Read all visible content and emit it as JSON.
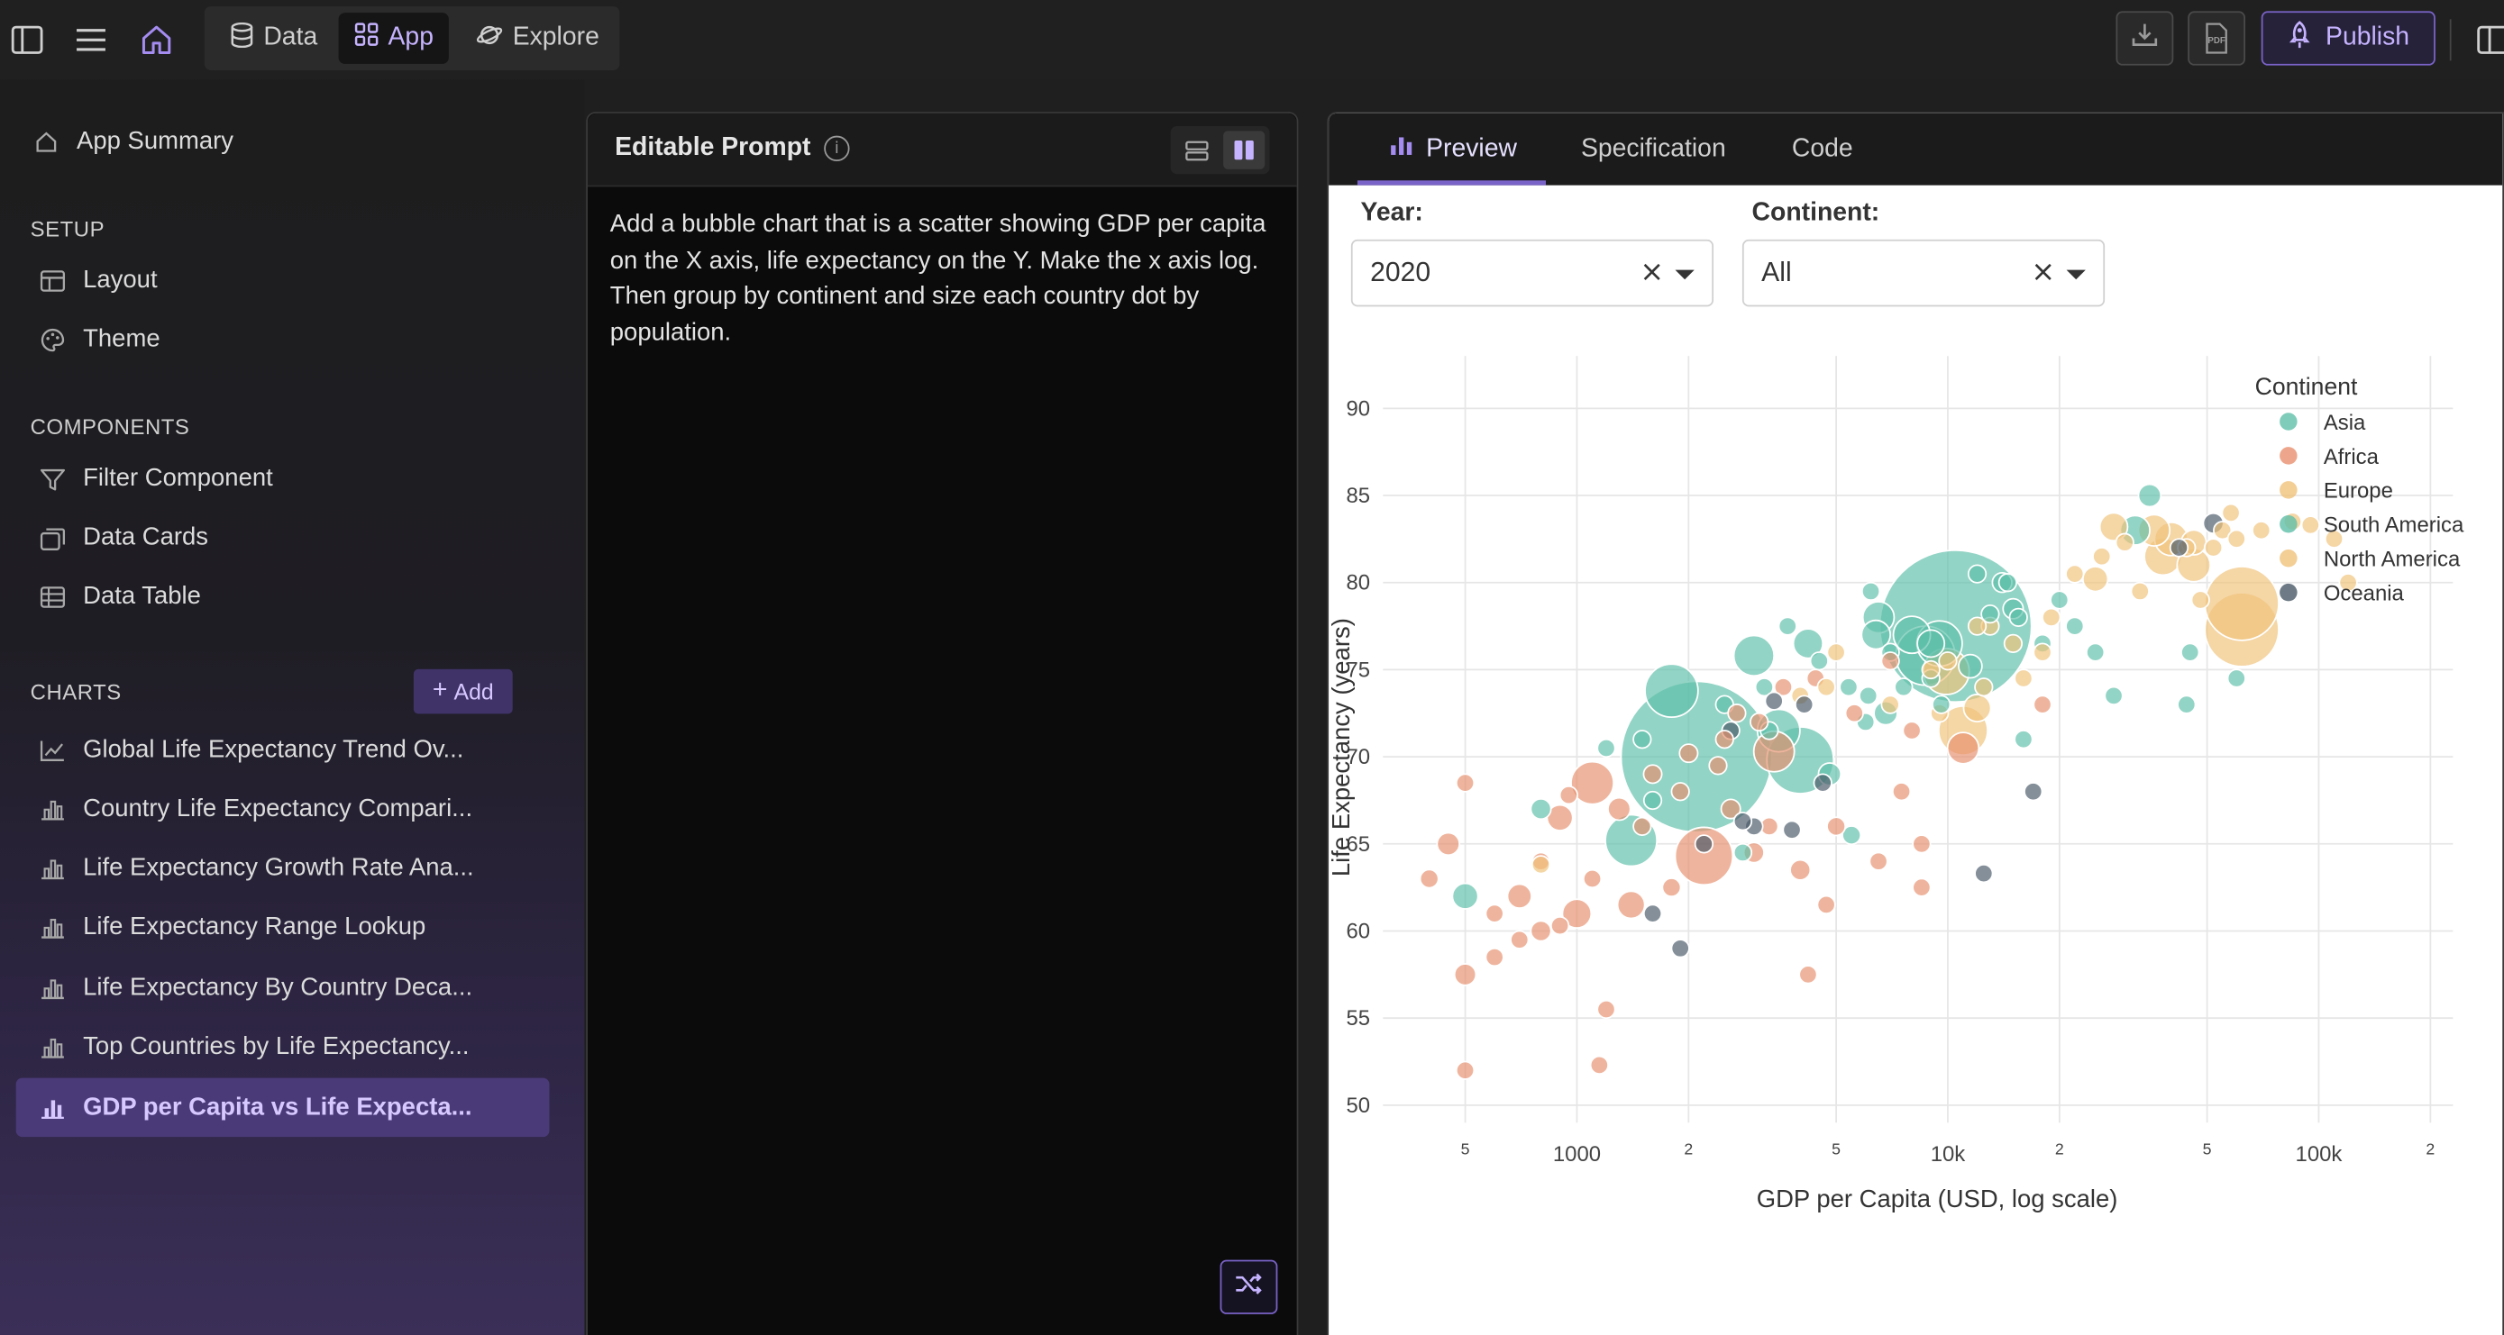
{
  "topbar": {
    "tabs": [
      {
        "label": "Data",
        "icon": "database-icon"
      },
      {
        "label": "App",
        "icon": "grid-icon",
        "active": true
      },
      {
        "label": "Explore",
        "icon": "planet-icon"
      }
    ],
    "publish_label": "Publish",
    "pdf_label": "PDF"
  },
  "sidebar": {
    "summary": "App Summary",
    "setup_heading": "SETUP",
    "setup_items": [
      "Layout",
      "Theme"
    ],
    "components_heading": "COMPONENTS",
    "component_items": [
      "Filter Component",
      "Data Cards",
      "Data Table"
    ],
    "charts_heading": "CHARTS",
    "add_label": "Add",
    "chart_items": [
      "Global Life Expectancy Trend Ov...",
      "Country Life Expectancy Compari...",
      "Life Expectancy Growth Rate Ana...",
      "Life Expectancy Range Lookup",
      "Life Expectancy By Country Deca...",
      "Top Countries by Life Expectancy...",
      "GDP per Capita vs Life Expecta..."
    ],
    "active_chart_index": 6
  },
  "prompt": {
    "title": "Editable Prompt",
    "text": "Add a bubble chart that is a scatter showing GDP per capita on the X axis, life expectancy on the Y. Make the x axis log. Then group by continent and size each country dot by population."
  },
  "preview": {
    "tabs": [
      "Preview",
      "Specification",
      "Code"
    ],
    "active_tab": "Preview",
    "filters": {
      "year_label": "Year:",
      "year_value": "2020",
      "continent_label": "Continent:",
      "continent_value": "All"
    }
  },
  "chart_data": {
    "type": "scatter",
    "xlabel": "GDP per Capita (USD, log scale)",
    "ylabel": "Life Expectancy (years)",
    "x_scale": "log",
    "xlim": [
      300,
      230000
    ],
    "ylim": [
      49,
      93
    ],
    "x_ticks": [
      {
        "value": 500,
        "label": "5"
      },
      {
        "value": 1000,
        "label": "1000"
      },
      {
        "value": 2000,
        "label": "2"
      },
      {
        "value": 5000,
        "label": "5"
      },
      {
        "value": 10000,
        "label": "10k"
      },
      {
        "value": 20000,
        "label": "2"
      },
      {
        "value": 50000,
        "label": "5"
      },
      {
        "value": 100000,
        "label": "100k"
      },
      {
        "value": 200000,
        "label": "2"
      }
    ],
    "y_ticks": [
      50,
      55,
      60,
      65,
      70,
      75,
      80,
      85,
      90
    ],
    "grid": true,
    "legend": {
      "title": "Continent",
      "placement": "top-right"
    },
    "colors": {
      "Asia": "#5fbfa9",
      "Africa": "#e8906e",
      "Europe": "#f0c27a",
      "South America": "#5fbfa9",
      "North America": "#f0c27a",
      "Oceania": "#4a5a68"
    },
    "series": [
      {
        "name": "Asia",
        "points": [
          [
            10500,
            77.5,
            1400
          ],
          [
            2100,
            70.0,
            1380
          ],
          [
            4000,
            69.8,
            270
          ],
          [
            1400,
            65.2,
            160
          ],
          [
            1800,
            73.8,
            170
          ],
          [
            3500,
            71.5,
            110
          ],
          [
            9500,
            76.5,
            125
          ],
          [
            3000,
            75.8,
            98
          ],
          [
            4200,
            76.5,
            52
          ],
          [
            6500,
            78.0,
            60
          ],
          [
            8000,
            77.0,
            84
          ],
          [
            11500,
            75.2,
            33
          ],
          [
            35000,
            85.0,
            30
          ],
          [
            32000,
            83.0,
            52
          ],
          [
            15000,
            78.5,
            25
          ],
          [
            14000,
            80.0,
            23
          ],
          [
            3200,
            74.0,
            16
          ],
          [
            2500,
            73.0,
            17
          ],
          [
            4800,
            69.0,
            30
          ],
          [
            5500,
            65.5,
            20
          ],
          [
            7000,
            76.0,
            19
          ],
          [
            9000,
            74.5,
            18
          ],
          [
            6000,
            72.0,
            10
          ],
          [
            1500,
            71.0,
            9
          ],
          [
            1200,
            70.5,
            7
          ],
          [
            12000,
            80.5,
            9
          ],
          [
            18000,
            76.5,
            10
          ],
          [
            20000,
            79.0,
            6
          ],
          [
            25000,
            76.0,
            8
          ],
          [
            28000,
            73.5,
            7
          ],
          [
            44000,
            73.0,
            6
          ],
          [
            60000,
            74.5,
            5
          ],
          [
            45000,
            76.0,
            7
          ],
          [
            22000,
            77.5,
            5
          ],
          [
            800,
            67.0,
            25
          ],
          [
            500,
            62.0,
            40
          ],
          [
            1600,
            67.5,
            8
          ],
          [
            3700,
            77.5,
            8
          ],
          [
            6200,
            79.5,
            5
          ],
          [
            16000,
            71.0,
            5
          ],
          [
            9600,
            73.0,
            8
          ],
          [
            13000,
            78.2,
            8
          ],
          [
            2800,
            64.5,
            6
          ],
          [
            4500,
            75.5,
            7
          ]
        ]
      },
      {
        "name": "Africa",
        "points": [
          [
            2200,
            64.3,
            200
          ],
          [
            11000,
            70.5,
            60
          ],
          [
            3400,
            70.3,
            100
          ],
          [
            1100,
            68.5,
            110
          ],
          [
            1000,
            61.0,
            50
          ],
          [
            1400,
            61.5,
            45
          ],
          [
            700,
            62.0,
            35
          ],
          [
            500,
            57.5,
            28
          ],
          [
            450,
            65.0,
            30
          ],
          [
            400,
            63.0,
            20
          ],
          [
            800,
            60.0,
            25
          ],
          [
            1200,
            55.5,
            10
          ],
          [
            600,
            58.5,
            15
          ],
          [
            900,
            66.5,
            40
          ],
          [
            1800,
            62.5,
            20
          ],
          [
            2600,
            67.0,
            22
          ],
          [
            3000,
            64.5,
            25
          ],
          [
            4000,
            63.5,
            25
          ],
          [
            5000,
            66.0,
            20
          ],
          [
            6500,
            64.0,
            15
          ],
          [
            7500,
            68.0,
            12
          ],
          [
            8500,
            65.0,
            12
          ],
          [
            18000,
            73.0,
            8
          ],
          [
            1600,
            69.0,
            20
          ],
          [
            1300,
            67.0,
            30
          ],
          [
            500,
            52.0,
            12
          ],
          [
            1150,
            52.3,
            8
          ],
          [
            4200,
            57.5,
            8
          ],
          [
            2000,
            70.2,
            20
          ],
          [
            2700,
            72.5,
            12
          ],
          [
            3600,
            74.0,
            15
          ],
          [
            4400,
            74.5,
            18
          ],
          [
            5600,
            72.5,
            10
          ],
          [
            7000,
            75.5,
            12
          ],
          [
            8000,
            71.5,
            10
          ],
          [
            600,
            61.0,
            18
          ],
          [
            800,
            64.0,
            14
          ],
          [
            950,
            67.8,
            16
          ],
          [
            1500,
            66.0,
            12
          ],
          [
            2400,
            69.5,
            14
          ],
          [
            3300,
            66.0,
            10
          ],
          [
            4700,
            61.5,
            10
          ],
          [
            900,
            60.3,
            12
          ],
          [
            700,
            59.5,
            10
          ],
          [
            1100,
            63.0,
            10
          ],
          [
            1900,
            68.0,
            10
          ],
          [
            2500,
            71.0,
            8
          ],
          [
            8500,
            62.5,
            10
          ],
          [
            500,
            68.5,
            8
          ],
          [
            3100,
            72.0,
            8
          ]
        ]
      },
      {
        "name": "Europe",
        "points": [
          [
            11000,
            71.5,
            146
          ],
          [
            12000,
            72.8,
            45
          ],
          [
            38000,
            81.5,
            83
          ],
          [
            40000,
            82.5,
            67
          ],
          [
            36000,
            83.0,
            60
          ],
          [
            28000,
            83.2,
            47
          ],
          [
            62000,
            77.3,
            331
          ],
          [
            46000,
            81.0,
            67
          ],
          [
            25000,
            80.2,
            38
          ],
          [
            15000,
            76.5,
            19
          ],
          [
            18000,
            76.0,
            10
          ],
          [
            22000,
            80.5,
            10
          ],
          [
            52000,
            82.0,
            17
          ],
          [
            55000,
            83.0,
            11
          ],
          [
            60000,
            82.5,
            9
          ],
          [
            70000,
            83.0,
            5
          ],
          [
            85000,
            83.5,
            5
          ],
          [
            110000,
            82.5,
            5
          ],
          [
            13000,
            77.5,
            10
          ],
          [
            9000,
            75.0,
            7
          ],
          [
            7000,
            73.0,
            7
          ],
          [
            5000,
            76.0,
            4
          ],
          [
            4000,
            73.5,
            3
          ],
          [
            30000,
            82.3,
            5
          ],
          [
            44000,
            82.0,
            10
          ],
          [
            48000,
            79.0,
            6
          ],
          [
            9500,
            72.5,
            10
          ],
          [
            19000,
            78.0,
            9
          ],
          [
            26000,
            81.5,
            8
          ],
          [
            33000,
            79.5,
            6
          ],
          [
            16000,
            74.5,
            6
          ],
          [
            12500,
            74.0,
            7
          ],
          [
            10000,
            75.5,
            4
          ],
          [
            800,
            63.8,
            4
          ],
          [
            58000,
            84.0,
            4
          ],
          [
            95000,
            83.3,
            4
          ],
          [
            120000,
            80.0,
            4
          ]
        ]
      },
      {
        "name": "South America",
        "points": [
          [
            8700,
            75.8,
            212
          ],
          [
            9000,
            76.5,
            45
          ],
          [
            6400,
            77.0,
            50
          ],
          [
            14500,
            80.0,
            19
          ],
          [
            6800,
            72.5,
            33
          ],
          [
            3300,
            71.5,
            11
          ],
          [
            5400,
            74.0,
            17
          ],
          [
            15500,
            78.0,
            3
          ],
          [
            7600,
            74.0,
            7
          ],
          [
            6100,
            73.5,
            3
          ]
        ]
      },
      {
        "name": "North America",
        "points": [
          [
            62000,
            78.8,
            330
          ],
          [
            46000,
            82.3,
            38
          ],
          [
            9900,
            74.9,
            128
          ],
          [
            4700,
            74.0,
            17
          ],
          [
            12000,
            77.5,
            5
          ]
        ]
      },
      {
        "name": "Oceania",
        "points": [
          [
            52000,
            83.4,
            25
          ],
          [
            42000,
            82.0,
            5
          ],
          [
            2600,
            71.5,
            9
          ],
          [
            2200,
            65.0,
            1
          ],
          [
            1600,
            61.0,
            1
          ],
          [
            3000,
            66.0,
            1
          ],
          [
            3800,
            65.8,
            1
          ],
          [
            4600,
            68.5,
            1
          ],
          [
            17000,
            68.0,
            1
          ],
          [
            12500,
            63.3,
            1
          ],
          [
            1900,
            59.0,
            1
          ],
          [
            3400,
            73.2,
            1
          ],
          [
            4100,
            73.0,
            1
          ],
          [
            2800,
            66.3,
            1
          ]
        ]
      }
    ]
  }
}
